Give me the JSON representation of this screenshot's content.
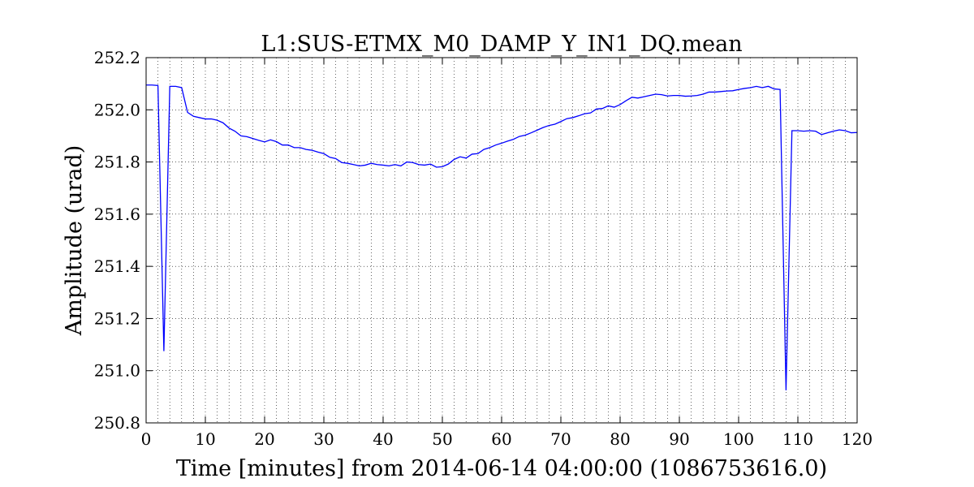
{
  "chart_data": {
    "type": "line",
    "title": "L1:SUS-ETMX_M0_DAMP_Y_IN1_DQ.mean",
    "xlabel": "Time [minutes] from 2014-06-14 04:00:00 (1086753616.0)",
    "ylabel": "Amplitude (urad)",
    "xlim": [
      0,
      120
    ],
    "ylim": [
      250.8,
      252.2
    ],
    "xticks": [
      0,
      10,
      20,
      30,
      40,
      50,
      60,
      70,
      80,
      90,
      100,
      110,
      120
    ],
    "yticks": [
      250.8,
      251.0,
      251.2,
      251.4,
      251.6,
      251.8,
      252.0,
      252.2
    ],
    "xtick_labels": [
      "0",
      "10",
      "20",
      "30",
      "40",
      "50",
      "60",
      "70",
      "80",
      "90",
      "100",
      "110",
      "120"
    ],
    "ytick_labels": [
      "250.8",
      "251.0",
      "251.2",
      "251.4",
      "251.6",
      "251.8",
      "252.0",
      "252.2"
    ],
    "grid": true,
    "line_color": "#0000ff",
    "series": [
      {
        "x": [
          0,
          1,
          2,
          3,
          4,
          5,
          6,
          7,
          8,
          9,
          10,
          11,
          12,
          13,
          14,
          15,
          16,
          17,
          18,
          19,
          20,
          21,
          22,
          23,
          24,
          25,
          26,
          27,
          28,
          29,
          30,
          31,
          32,
          33,
          34,
          35,
          36,
          37,
          38,
          39,
          40,
          41,
          42,
          43,
          44,
          45,
          46,
          47,
          48,
          49,
          50,
          51,
          52,
          53,
          54,
          55,
          56,
          57,
          58,
          59,
          60,
          61,
          62,
          63,
          64,
          65,
          66,
          67,
          68,
          69,
          70,
          71,
          72,
          73,
          74,
          75,
          76,
          77,
          78,
          79,
          80,
          81,
          82,
          83,
          84,
          85,
          86,
          87,
          88,
          89,
          90,
          91,
          92,
          93,
          94,
          95,
          96,
          97,
          98,
          99,
          100,
          101,
          102,
          103,
          104,
          105,
          106,
          107,
          108,
          109,
          110,
          111,
          112,
          113,
          114,
          115,
          116,
          117,
          118,
          119,
          120
        ],
        "y": [
          252.095,
          252.095,
          252.093,
          251.075,
          252.09,
          252.09,
          252.085,
          251.99,
          251.975,
          251.97,
          251.965,
          251.965,
          251.96,
          251.95,
          251.93,
          251.918,
          251.9,
          251.897,
          251.89,
          251.883,
          251.877,
          251.885,
          251.878,
          251.865,
          251.865,
          251.855,
          251.855,
          251.848,
          251.845,
          251.838,
          251.832,
          251.818,
          251.813,
          251.798,
          251.795,
          251.79,
          251.785,
          251.788,
          251.795,
          251.79,
          251.788,
          251.785,
          251.79,
          251.785,
          251.8,
          251.798,
          251.79,
          251.788,
          251.792,
          251.78,
          251.782,
          251.792,
          251.81,
          251.82,
          251.815,
          251.83,
          251.832,
          251.848,
          251.855,
          251.865,
          251.872,
          251.88,
          251.887,
          251.898,
          251.903,
          251.912,
          251.922,
          251.932,
          251.94,
          251.945,
          251.955,
          251.966,
          251.97,
          251.977,
          251.985,
          251.988,
          252.003,
          252.005,
          252.015,
          252.01,
          252.02,
          252.035,
          252.048,
          252.045,
          252.05,
          252.055,
          252.06,
          252.058,
          252.053,
          252.055,
          252.055,
          252.052,
          252.053,
          252.055,
          252.06,
          252.068,
          252.068,
          252.07,
          252.072,
          252.073,
          252.078,
          252.082,
          252.085,
          252.09,
          252.085,
          252.09,
          252.08,
          252.078,
          250.925,
          251.92,
          251.92,
          251.918,
          251.92,
          251.918,
          251.905,
          251.912,
          251.918,
          251.923,
          251.92,
          251.912,
          251.913
        ]
      }
    ]
  }
}
